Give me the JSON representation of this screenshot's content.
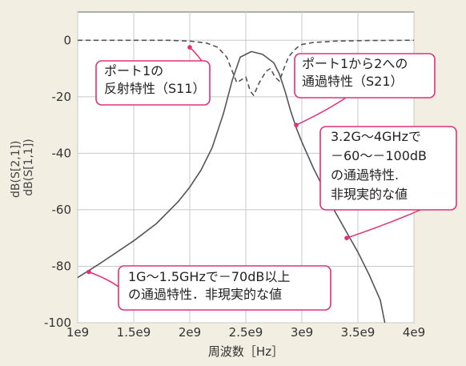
{
  "chart_data": {
    "type": "line",
    "xlabel": "周波数［Hz］",
    "ylabel_lines": [
      "dB(S[2,1])",
      "dB(S[1,1])"
    ],
    "xlim": [
      1000000000,
      4000000000
    ],
    "ylim": [
      -100,
      10
    ],
    "x_ticks": [
      {
        "value": 1000000000,
        "label": "1e9"
      },
      {
        "value": 1500000000,
        "label": "1.5e9"
      },
      {
        "value": 2000000000,
        "label": "2e9"
      },
      {
        "value": 2500000000,
        "label": "2.5e9"
      },
      {
        "value": 3000000000,
        "label": "3e9"
      },
      {
        "value": 3500000000,
        "label": "3.5e9"
      },
      {
        "value": 4000000000,
        "label": "4e9"
      }
    ],
    "y_ticks": [
      {
        "value": 0,
        "label": "0"
      },
      {
        "value": -20,
        "label": "-20"
      },
      {
        "value": -40,
        "label": "-40"
      },
      {
        "value": -60,
        "label": "-60"
      },
      {
        "value": -80,
        "label": "-80"
      },
      {
        "value": -100,
        "label": "-100"
      }
    ],
    "grid": true,
    "series": [
      {
        "key": "s21",
        "style": "solid",
        "color": "#555555",
        "x": [
          1000000000,
          1200000000,
          1500000000,
          1700000000,
          1900000000,
          2000000000,
          2100000000,
          2200000000,
          2300000000,
          2380000000,
          2450000000,
          2550000000,
          2650000000,
          2750000000,
          2800000000,
          2850000000,
          2900000000,
          2950000000,
          3000000000,
          3100000000,
          3200000000,
          3300000000,
          3400000000,
          3500000000,
          3600000000,
          3700000000,
          3740000000
        ],
        "y": [
          -84,
          -79,
          -71,
          -65,
          -57,
          -52,
          -46,
          -38,
          -26,
          -14,
          -6,
          -4,
          -5,
          -8,
          -12,
          -18,
          -25,
          -31,
          -36,
          -45,
          -53,
          -61,
          -68,
          -75,
          -83,
          -92,
          -100
        ]
      },
      {
        "key": "s11",
        "style": "dashed",
        "color": "#555555",
        "x": [
          1000000000,
          1500000000,
          1800000000,
          2000000000,
          2150000000,
          2250000000,
          2330000000,
          2380000000,
          2420000000,
          2460000000,
          2500000000,
          2540000000,
          2570000000,
          2620000000,
          2680000000,
          2720000000,
          2760000000,
          2800000000,
          2840000000,
          2880000000,
          2920000000,
          2960000000,
          3000000000,
          3100000000,
          3300000000,
          3600000000,
          4000000000
        ],
        "y": [
          0,
          0,
          0,
          -0.3,
          -1,
          -2.5,
          -6,
          -11,
          -15,
          -14,
          -13,
          -18,
          -19.5,
          -15,
          -11,
          -10,
          -13,
          -14.5,
          -10,
          -6,
          -4,
          -2.5,
          -1.5,
          -0.8,
          -0.3,
          -0.1,
          0
        ]
      }
    ],
    "annotations": [
      {
        "lines": [
          "ポート1の",
          "反射特性（S11）"
        ],
        "point": [
          2000000000,
          -2.5
        ]
      },
      {
        "lines": [
          "ポート1から2への",
          "通過特性（S21）"
        ],
        "point": [
          2950000000,
          -30
        ]
      },
      {
        "lines": [
          "3.2G～4GHzで",
          "－60～－100dB",
          "の通過特性.",
          "非現実的な値"
        ],
        "point": [
          3400000000,
          -70
        ]
      },
      {
        "lines": [
          "1G～1.5GHzで－70dB以上",
          "の通過特性．非現実的な値"
        ],
        "point": [
          1100000000,
          -82
        ]
      }
    ]
  }
}
